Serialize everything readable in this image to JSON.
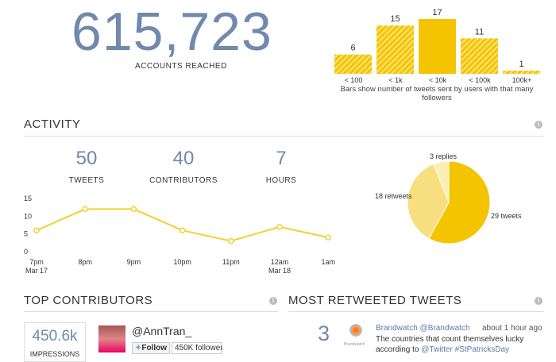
{
  "reach": {
    "value": "615,723",
    "label": "ACCOUNTS REACHED"
  },
  "followers_chart": {
    "type": "bar",
    "categories": [
      "< 100",
      "< 1k",
      "< 10k",
      "< 100k",
      "100k+"
    ],
    "values": [
      6,
      15,
      17,
      11,
      1
    ],
    "caption": "Bars show number of tweets sent by users with that many followers",
    "color": "#f5c400"
  },
  "activity": {
    "title": "ACTIVITY",
    "info": "i",
    "stats": [
      {
        "n": "50",
        "l": "TWEETS"
      },
      {
        "n": "40",
        "l": "CONTRIBUTORS"
      },
      {
        "n": "7",
        "l": "HOURS"
      }
    ]
  },
  "chart_data": [
    {
      "type": "line",
      "x": [
        "7pm\nMar 17",
        "8pm",
        "9pm",
        "10pm",
        "11pm",
        "12am\nMar 18",
        "1am"
      ],
      "x_labels": [
        [
          "7pm",
          "Mar 17"
        ],
        [
          "8pm",
          ""
        ],
        [
          "9pm",
          ""
        ],
        [
          "10pm",
          ""
        ],
        [
          "11pm",
          ""
        ],
        [
          "12am",
          "Mar 18"
        ],
        [
          "1am",
          ""
        ]
      ],
      "values": [
        6,
        12,
        12,
        6,
        3,
        7,
        4
      ],
      "yticks": [
        "0",
        "5",
        "10",
        "15"
      ],
      "ylim": [
        0,
        15
      ],
      "color": "#f5d033"
    },
    {
      "type": "pie",
      "labels": [
        "29 tweets",
        "18 retweets",
        "3 replies"
      ],
      "values": [
        29,
        18,
        3
      ],
      "colors": [
        "#f5c400",
        "#f7df80",
        "#fbeeb0"
      ]
    }
  ],
  "contributors": {
    "title": "TOP CONTRIBUTORS",
    "info": "i",
    "impressions": "450.6k",
    "impressions_label": "IMPRESSIONS",
    "handle": "@AnnTran_",
    "follow": "Follow",
    "followers": "450K followers"
  },
  "retweeted": {
    "title": "MOST RETWEETED TWEETS",
    "info": "i",
    "count": "3",
    "logo_text": "Brandwatch",
    "author": "Brandwatch @Brandwatch",
    "time": "about 1 hour ago",
    "text1": "The countries that count themselves lucky",
    "text2": "according to ",
    "mention": "@Twitter",
    "hashtag": "#StPatricksDay"
  }
}
